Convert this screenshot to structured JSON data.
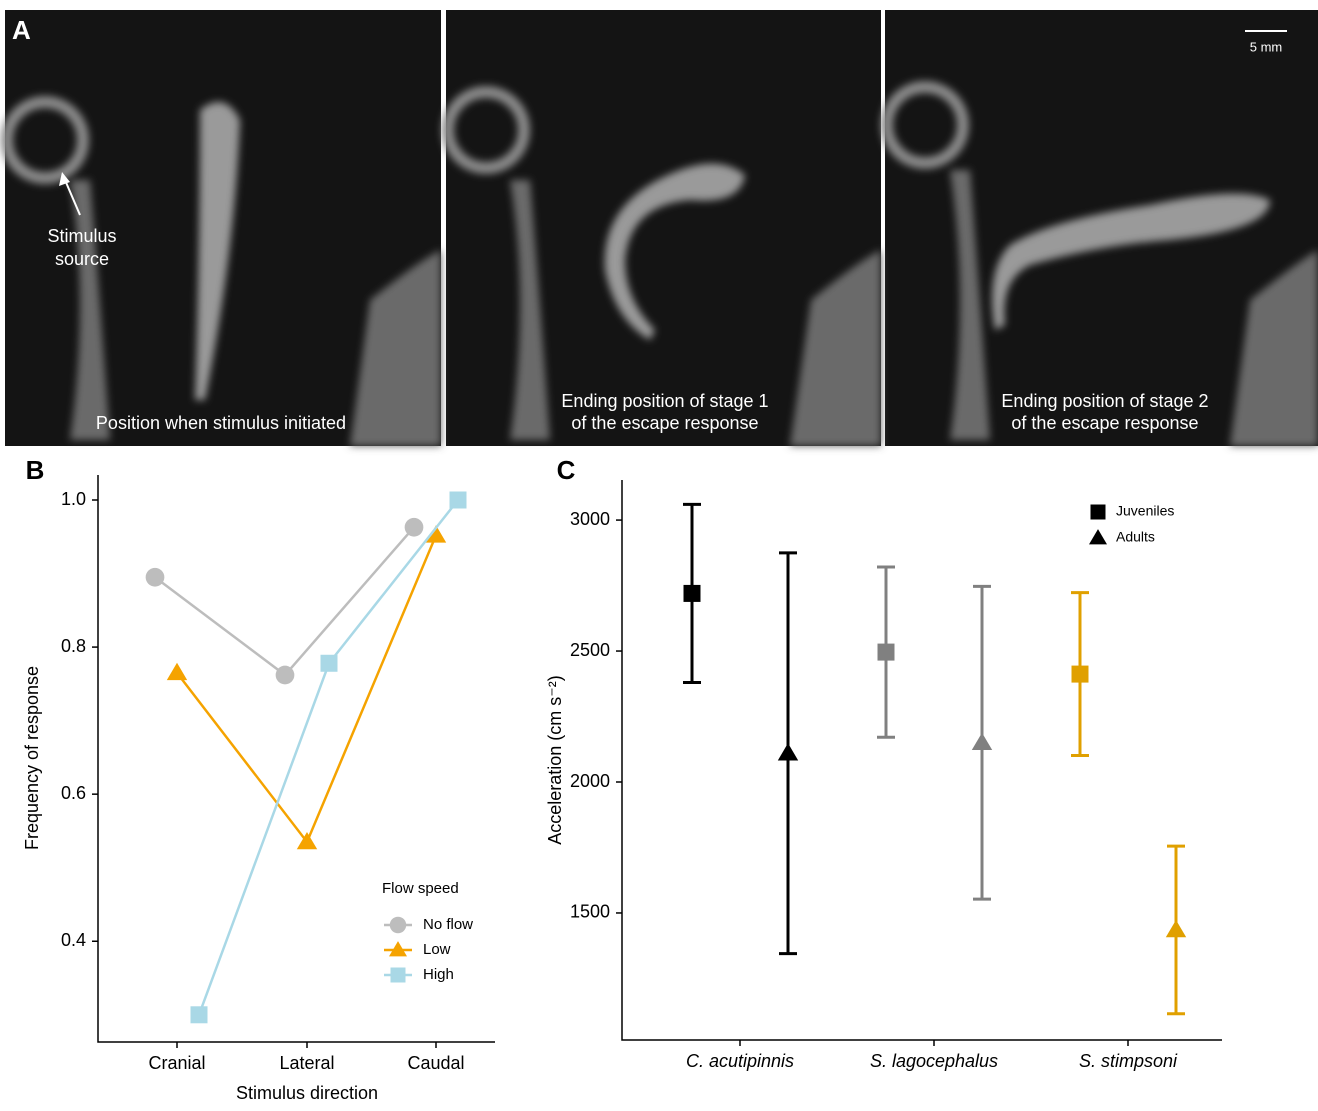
{
  "panel_a": {
    "label": "A",
    "annotation": [
      "Stimulus",
      "source"
    ],
    "scale_bar": "5 mm",
    "captions": [
      [
        "Position when stimulus initiated"
      ],
      [
        "Ending position of stage 1",
        "of the escape response"
      ],
      [
        "Ending position of stage 2",
        "of the escape response"
      ]
    ]
  },
  "chart_data": [
    {
      "type": "line",
      "panel": "B",
      "xlabel": "Stimulus direction",
      "ylabel": "Frequency of response",
      "categories": [
        "Cranial",
        "Lateral",
        "Caudal"
      ],
      "ylim": [
        0.263,
        1.034
      ],
      "yticks": [
        0.4,
        0.6,
        0.8,
        {
          "value": 1,
          "label": "1.0"
        }
      ],
      "legend_title": "Flow speed",
      "series": [
        {
          "name": "No flow",
          "color": "#bdbdbd",
          "marker": "circle",
          "values": [
            0.895,
            0.762,
            0.963
          ]
        },
        {
          "name": "Low",
          "color": "#f5a300",
          "marker": "triangle",
          "values": [
            0.765,
            0.535,
            0.952
          ]
        },
        {
          "name": "High",
          "color": "#a9d8e6",
          "marker": "square",
          "values": [
            0.3,
            0.778,
            1
          ]
        }
      ]
    },
    {
      "type": "errorbar",
      "panel": "C",
      "ylabel": "Acceleration (cm s⁻²)",
      "categories": [
        "C. acutipinnis",
        "S. lagocephalus",
        "S. stimpsoni"
      ],
      "category_colors": [
        "#000000",
        "#808080",
        "#e0a000"
      ],
      "ylim": [
        1015,
        3153
      ],
      "yticks": [
        1500,
        2000,
        2500,
        3000
      ],
      "series": [
        {
          "name": "Juveniles",
          "color": "#000000",
          "marker": "square",
          "values": [
            2720,
            2496,
            2412
          ],
          "errors": [
            340,
            325,
            311
          ]
        },
        {
          "name": "Adults",
          "color": "#000000",
          "marker": "triangle",
          "values": [
            2110,
            2150,
            1435
          ],
          "errors": [
            765,
            597,
            320
          ]
        }
      ]
    }
  ]
}
